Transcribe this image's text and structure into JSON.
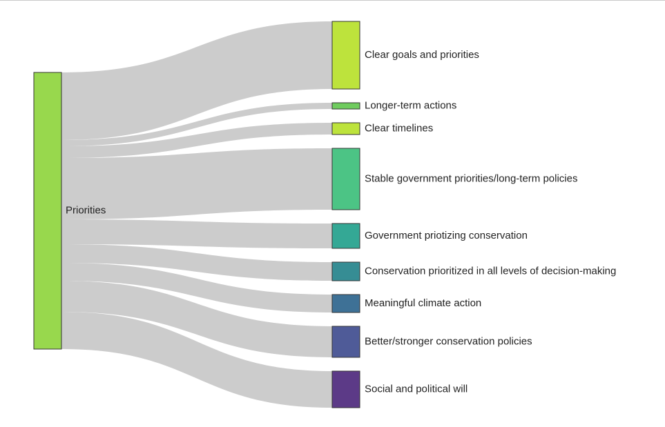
{
  "diagram": {
    "type": "sankey",
    "source": {
      "label": "Priorities",
      "color": "#98d84d"
    },
    "targets": [
      {
        "label": "Clear goals and priorities",
        "color": "#bde33c"
      },
      {
        "label": "Longer-term actions",
        "color": "#6fcc5e"
      },
      {
        "label": "Clear timelines",
        "color": "#bde33c"
      },
      {
        "label": "Stable government priorities/long-term policies",
        "color": "#4cc485"
      },
      {
        "label": "Government priotizing conservation",
        "color": "#34a895"
      },
      {
        "label": "Conservation prioritized in all levels of decision-making",
        "color": "#368d94"
      },
      {
        "label": "Meaningful climate action",
        "color": "#3e7196"
      },
      {
        "label": "Better/stronger conservation policies",
        "color": "#4f5b98"
      },
      {
        "label": "Social and political will",
        "color": "#5c3a87"
      }
    ],
    "link_color": "#cccccc"
  }
}
